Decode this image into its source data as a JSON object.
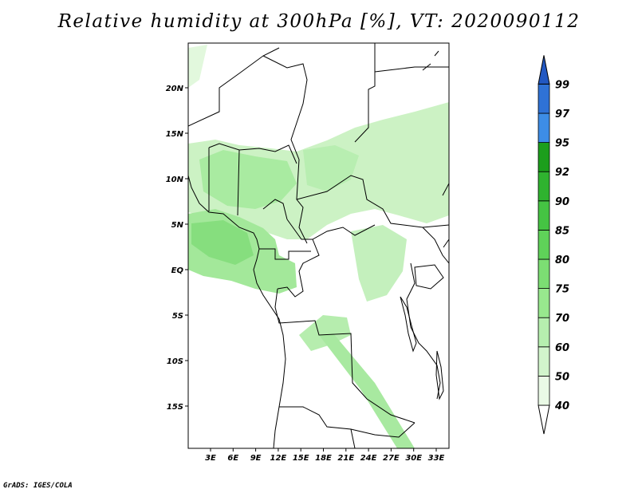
{
  "title": "Relative humidity at 300hPa [%], VT: 2020090112",
  "credit": "GrADS: IGES/COLA",
  "map": {
    "lon_range": [
      0,
      35
    ],
    "lat_range": [
      -20,
      25
    ],
    "lat_ticks": [
      "20N",
      "15N",
      "10N",
      "5N",
      "EQ",
      "5S",
      "10S",
      "15S"
    ],
    "lon_ticks": [
      "3E",
      "6E",
      "9E",
      "12E",
      "15E",
      "18E",
      "21E",
      "24E",
      "27E",
      "30E",
      "33E"
    ]
  },
  "colorbar": {
    "labels": [
      "40",
      "50",
      "60",
      "70",
      "75",
      "80",
      "85",
      "90",
      "92",
      "95",
      "97",
      "99"
    ],
    "colors": [
      "#eafae6",
      "#d2f5cc",
      "#b6efaf",
      "#98e88e",
      "#7cde73",
      "#5fd259",
      "#45c443",
      "#2fb32f",
      "#1c9e1c",
      "#3d8de6",
      "#2f72d6",
      "#2258c2"
    ]
  }
}
